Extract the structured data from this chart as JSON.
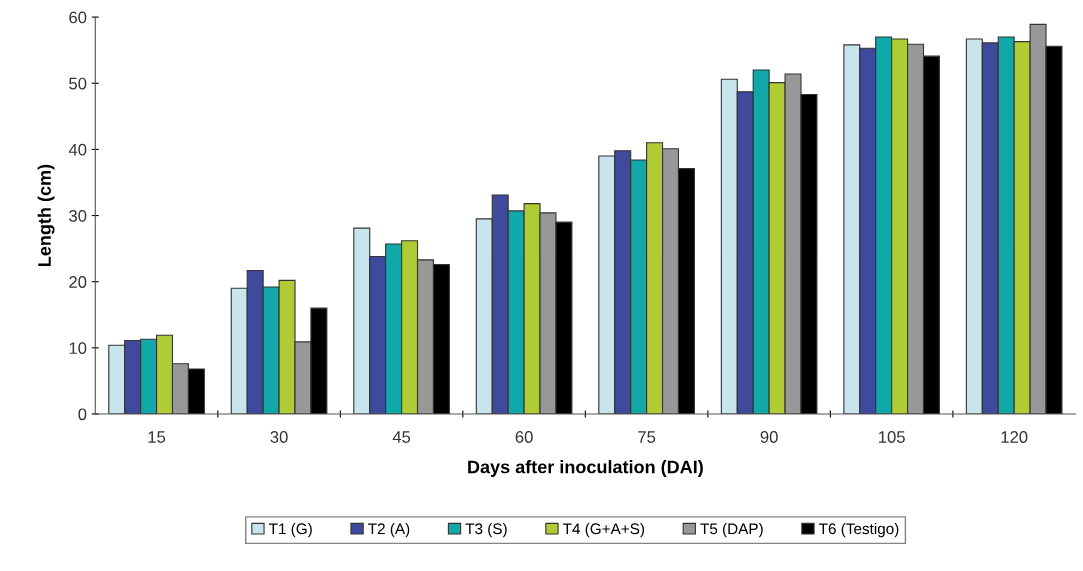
{
  "chart_data": {
    "type": "bar",
    "xlabel": "Days after inoculation (DAI)",
    "ylabel": "Length (cm)",
    "categories": [
      "15",
      "30",
      "45",
      "60",
      "75",
      "90",
      "105",
      "120"
    ],
    "series": [
      {
        "name": "T1 (G)",
        "color": "#c8e4ec",
        "values": [
          10.4,
          19.0,
          28.1,
          29.5,
          39.0,
          50.6,
          55.8,
          56.7
        ]
      },
      {
        "name": "T2 (A)",
        "color": "#3f4a9c",
        "values": [
          11.1,
          21.7,
          23.8,
          33.1,
          39.8,
          48.7,
          55.3,
          56.1
        ]
      },
      {
        "name": "T3 (S)",
        "color": "#10a8a8",
        "values": [
          11.3,
          19.2,
          25.7,
          30.7,
          38.4,
          52.0,
          57.0,
          57.0
        ]
      },
      {
        "name": "T4 (G+A+S)",
        "color": "#b0cc34",
        "values": [
          11.9,
          20.2,
          26.2,
          31.8,
          41.0,
          50.1,
          56.7,
          56.3
        ]
      },
      {
        "name": "T5 (DAP)",
        "color": "#989898",
        "values": [
          7.6,
          10.9,
          23.3,
          30.4,
          40.1,
          51.4,
          55.9,
          58.9
        ]
      },
      {
        "name": "T6 (Testigo)",
        "color": "#000000",
        "values": [
          6.8,
          16.0,
          22.6,
          29.0,
          37.1,
          48.3,
          54.1,
          55.6
        ]
      }
    ],
    "ylim": [
      0,
      60
    ],
    "yticks": [
      0,
      10,
      20,
      30,
      40,
      50,
      60
    ],
    "grid": false,
    "legend": "bottom"
  }
}
